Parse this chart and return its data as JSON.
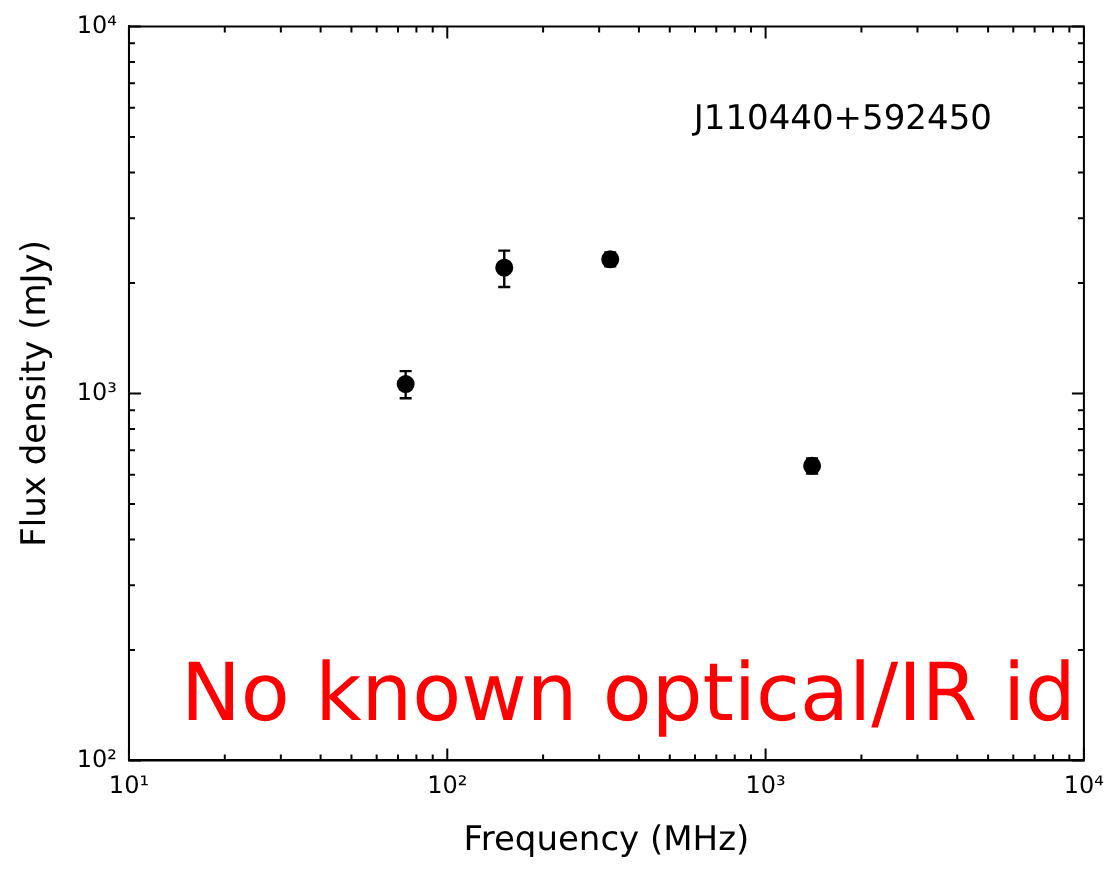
{
  "chart_data": {
    "type": "scatter",
    "xlabel": "Frequency (MHz)",
    "ylabel": "Flux density (mJy)",
    "annotations": [
      "J110440+592450",
      "No known optical/IR id"
    ],
    "log": "xy",
    "grid": false,
    "legend": false,
    "marker": "circle",
    "xlim": [
      10,
      10000
    ],
    "ylim": [
      100,
      10000
    ],
    "xticks": [
      {
        "value": 10,
        "label": "10¹"
      },
      {
        "value": 20,
        "label": null
      },
      {
        "value": 30,
        "label": null
      },
      {
        "value": 40,
        "label": null
      },
      {
        "value": 50,
        "label": null
      },
      {
        "value": 60,
        "label": null
      },
      {
        "value": 70,
        "label": null
      },
      {
        "value": 80,
        "label": null
      },
      {
        "value": 90,
        "label": null
      },
      {
        "value": 100,
        "label": "10²"
      },
      {
        "value": 200,
        "label": null
      },
      {
        "value": 300,
        "label": null
      },
      {
        "value": 400,
        "label": null
      },
      {
        "value": 500,
        "label": null
      },
      {
        "value": 600,
        "label": null
      },
      {
        "value": 700,
        "label": null
      },
      {
        "value": 800,
        "label": null
      },
      {
        "value": 900,
        "label": null
      },
      {
        "value": 1000,
        "label": "10³"
      },
      {
        "value": 2000,
        "label": null
      },
      {
        "value": 3000,
        "label": null
      },
      {
        "value": 4000,
        "label": null
      },
      {
        "value": 5000,
        "label": null
      },
      {
        "value": 6000,
        "label": null
      },
      {
        "value": 7000,
        "label": null
      },
      {
        "value": 8000,
        "label": null
      },
      {
        "value": 9000,
        "label": null
      },
      {
        "value": 10000,
        "label": "10⁴"
      }
    ],
    "yticks": [
      {
        "value": 100,
        "label": "10²"
      },
      {
        "value": 200,
        "label": null
      },
      {
        "value": 300,
        "label": null
      },
      {
        "value": 400,
        "label": null
      },
      {
        "value": 500,
        "label": null
      },
      {
        "value": 600,
        "label": null
      },
      {
        "value": 700,
        "label": null
      },
      {
        "value": 800,
        "label": null
      },
      {
        "value": 900,
        "label": null
      },
      {
        "value": 1000,
        "label": "10³"
      },
      {
        "value": 2000,
        "label": null
      },
      {
        "value": 3000,
        "label": null
      },
      {
        "value": 4000,
        "label": null
      },
      {
        "value": 5000,
        "label": null
      },
      {
        "value": 6000,
        "label": null
      },
      {
        "value": 7000,
        "label": null
      },
      {
        "value": 8000,
        "label": null
      },
      {
        "value": 9000,
        "label": null
      },
      {
        "value": 10000,
        "label": "10⁴"
      }
    ],
    "series": [
      {
        "color": "#000000",
        "x": [
          74,
          151,
          325,
          1400
        ],
        "values": [
          1060,
          2200,
          2320,
          635
        ],
        "errors": [
          90,
          250,
          100,
          30
        ]
      }
    ]
  }
}
